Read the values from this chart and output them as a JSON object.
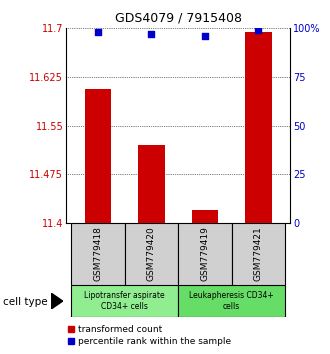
{
  "title": "GDS4079 / 7915408",
  "samples": [
    "GSM779418",
    "GSM779420",
    "GSM779419",
    "GSM779421"
  ],
  "transformed_counts": [
    11.607,
    11.52,
    11.42,
    11.695
  ],
  "percentile_ranks": [
    98,
    97,
    96,
    99
  ],
  "ylim_left": [
    11.4,
    11.7
  ],
  "ylim_right": [
    0,
    100
  ],
  "yticks_left": [
    11.4,
    11.475,
    11.55,
    11.625,
    11.7
  ],
  "ytick_labels_left": [
    "11.4",
    "11.475",
    "11.55",
    "11.625",
    "11.7"
  ],
  "yticks_right": [
    0,
    25,
    50,
    75,
    100
  ],
  "ytick_labels_right": [
    "0",
    "25",
    "50",
    "75",
    "100%"
  ],
  "bar_color": "#cc0000",
  "dot_color": "#0000cc",
  "cell_type_label": "cell type",
  "legend_bar_label": "transformed count",
  "legend_dot_label": "percentile rank within the sample",
  "group1_label": "Lipotransfer aspirate\nCD34+ cells",
  "group2_label": "Leukapheresis CD34+\ncells",
  "group1_color": "#90ee90",
  "group2_color": "#66dd66",
  "sample_box_color": "#d0d0d0",
  "x_positions": [
    0,
    1,
    2,
    3
  ]
}
